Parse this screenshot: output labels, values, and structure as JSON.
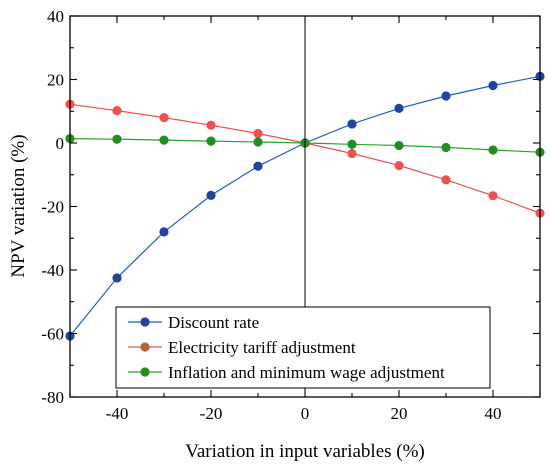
{
  "chart_data": {
    "type": "line",
    "xlabel": "Variation in input variables (%)",
    "ylabel": "NPV variation (%)",
    "xlim": [
      -50,
      50
    ],
    "ylim": [
      -80,
      40
    ],
    "x_ticks": [
      -40,
      -20,
      0,
      20,
      40
    ],
    "y_ticks": [
      -80,
      -60,
      -40,
      -20,
      0,
      20,
      40
    ],
    "x_tick_labels": [
      "-40",
      "-20",
      "0",
      "20",
      "40"
    ],
    "y_tick_labels": [
      "-80",
      "-60",
      "-40",
      "-20",
      "0",
      "20",
      "40"
    ],
    "grid": false,
    "legend_position": "bottom-right",
    "x": [
      -50,
      -40,
      -30,
      -20,
      -10,
      0,
      10,
      20,
      30,
      40,
      50
    ],
    "series": [
      {
        "name": "Discount rate",
        "line_color": "#1f5fbf",
        "marker_color": "#2044a0",
        "values": [
          -60.8,
          -42.5,
          -28.0,
          -16.5,
          -7.3,
          0,
          6.0,
          10.9,
          14.8,
          18.1,
          21.0
        ]
      },
      {
        "name": "Electricity tariff adjustment",
        "line_color": "#f05050",
        "marker_color": "#f05050",
        "legend_marker_color": "#b5653a",
        "values": [
          12.2,
          10.2,
          8.0,
          5.6,
          3.0,
          0,
          -3.3,
          -7.1,
          -11.6,
          -16.6,
          -22.1
        ]
      },
      {
        "name": "Inflation and minimum wage adjustment",
        "line_color": "#2ea02e",
        "marker_color": "#1f8f1f",
        "values": [
          1.4,
          1.2,
          0.9,
          0.6,
          0.3,
          0,
          -0.4,
          -0.8,
          -1.4,
          -2.2,
          -2.9
        ]
      }
    ]
  }
}
